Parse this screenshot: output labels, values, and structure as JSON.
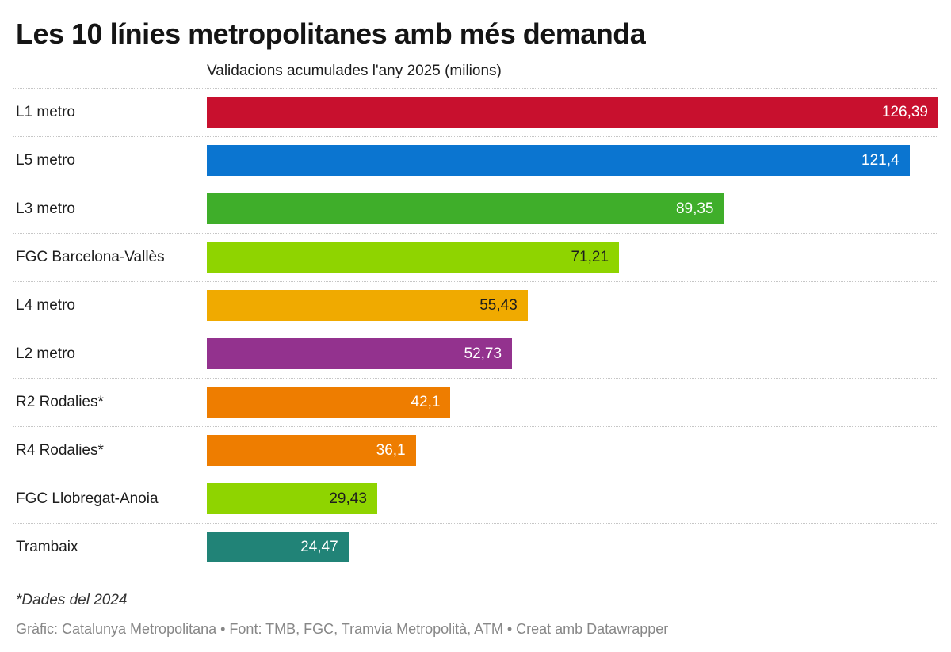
{
  "header": {
    "title": "Les 10 línies metropolitanes amb més demanda",
    "subtitle": "Validacions acumulades l'any 2025 (milions)"
  },
  "footer": {
    "footnote": "*Dades del 2024",
    "byline": "Gràfic: Catalunya Metropolitana • Font: TMB, FGC, Tramvia Metropolità, ATM • Creat amb Datawrapper"
  },
  "chart_data": {
    "type": "bar",
    "orientation": "horizontal",
    "title": "Les 10 línies metropolitanes amb més demanda",
    "subtitle": "Validacions acumulades l'any 2025 (milions)",
    "xlabel": "",
    "ylabel": "",
    "xlim": [
      0,
      126.39
    ],
    "grid": false,
    "legend": "none",
    "value_format": "decimal-comma",
    "separator_style": "dotted",
    "categories": [
      "L1 metro",
      "L5 metro",
      "L3 metro",
      "FGC Barcelona-Vallès",
      "L4 metro",
      "L2 metro",
      "R2 Rodalies*",
      "R4 Rodalies*",
      "FGC Llobregat-Anoia",
      "Trambaix"
    ],
    "values": [
      126.39,
      121.4,
      89.35,
      71.21,
      55.43,
      52.73,
      42.1,
      36.1,
      29.43,
      24.47
    ],
    "rows": [
      {
        "label": "L1 metro",
        "value": 126.39,
        "value_label": "126,39",
        "color": "#c8102e",
        "value_text_color": "#ffffff"
      },
      {
        "label": "L5 metro",
        "value": 121.4,
        "value_label": "121,4",
        "color": "#0b75d0",
        "value_text_color": "#ffffff"
      },
      {
        "label": "L3 metro",
        "value": 89.35,
        "value_label": "89,35",
        "color": "#3fae2a",
        "value_text_color": "#ffffff"
      },
      {
        "label": "FGC Barcelona-Vallès",
        "value": 71.21,
        "value_label": "71,21",
        "color": "#8fd400",
        "value_text_color": "#1d1d1d"
      },
      {
        "label": "L4 metro",
        "value": 55.43,
        "value_label": "55,43",
        "color": "#f0aa00",
        "value_text_color": "#1d1d1d"
      },
      {
        "label": "L2 metro",
        "value": 52.73,
        "value_label": "52,73",
        "color": "#93328e",
        "value_text_color": "#ffffff"
      },
      {
        "label": "R2 Rodalies*",
        "value": 42.1,
        "value_label": "42,1",
        "color": "#ee7d00",
        "value_text_color": "#ffffff"
      },
      {
        "label": "R4 Rodalies*",
        "value": 36.1,
        "value_label": "36,1",
        "color": "#ee7d00",
        "value_text_color": "#ffffff"
      },
      {
        "label": "FGC Llobregat-Anoia",
        "value": 29.43,
        "value_label": "29,43",
        "color": "#8fd400",
        "value_text_color": "#1d1d1d"
      },
      {
        "label": "Trambaix",
        "value": 24.47,
        "value_label": "24,47",
        "color": "#218377",
        "value_text_color": "#ffffff"
      }
    ]
  }
}
